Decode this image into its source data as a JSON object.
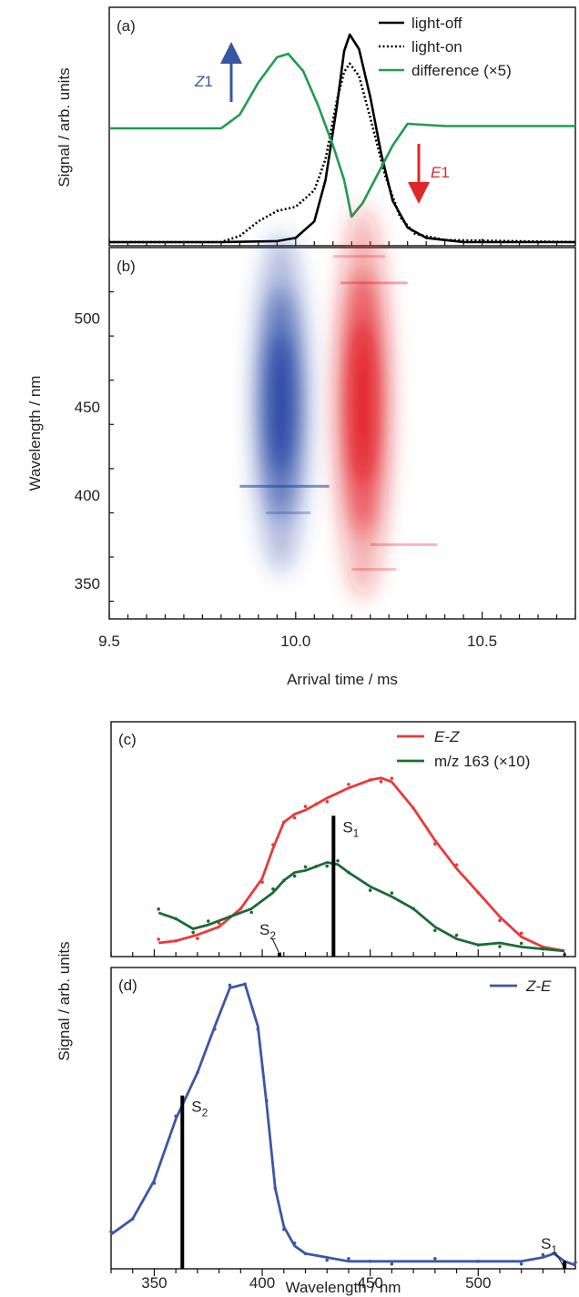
{
  "colors": {
    "light_off": "#000000",
    "light_on": "#000000",
    "difference": "#1f9d4c",
    "z1_arrow": "#3556a3",
    "e1_arrow": "#e0262b",
    "heat_negative": "#1d3fa0",
    "heat_positive": "#e0141d",
    "ez": "#e83a3a",
    "mz163": "#1b6b33",
    "ze": "#3b57a6",
    "stick": "#000000"
  },
  "chart_data": [
    {
      "panel": "a",
      "type": "line",
      "panel_label": "(a)",
      "ylabel": "Signal / arb. units",
      "xlim": [
        9.5,
        10.75
      ],
      "x_axis_shared_with": "b",
      "grid": false,
      "legend_position": "top-right",
      "series": [
        {
          "name": "light-off",
          "style": "solid",
          "x": [
            9.5,
            9.8,
            9.95,
            10.0,
            10.05,
            10.08,
            10.11,
            10.13,
            10.145,
            10.17,
            10.2,
            10.23,
            10.26,
            10.3,
            10.35,
            10.45,
            10.75
          ],
          "y": [
            0,
            0,
            0.005,
            0.02,
            0.1,
            0.3,
            0.65,
            0.92,
            1.0,
            0.93,
            0.7,
            0.42,
            0.2,
            0.07,
            0.02,
            0,
            0
          ]
        },
        {
          "name": "light-on",
          "style": "dotted",
          "x": [
            9.5,
            9.8,
            9.85,
            9.9,
            9.95,
            10.0,
            10.05,
            10.08,
            10.11,
            10.13,
            10.145,
            10.17,
            10.2,
            10.24,
            10.28,
            10.32,
            10.4,
            10.75
          ],
          "y": [
            0,
            0,
            0.03,
            0.1,
            0.15,
            0.17,
            0.25,
            0.4,
            0.68,
            0.82,
            0.86,
            0.8,
            0.6,
            0.32,
            0.12,
            0.04,
            0.01,
            0
          ]
        },
        {
          "name": "difference (×5)",
          "style": "solid",
          "x": [
            9.5,
            9.8,
            9.85,
            9.9,
            9.95,
            9.98,
            10.02,
            10.06,
            10.1,
            10.13,
            10.15,
            10.18,
            10.22,
            10.26,
            10.3,
            10.4,
            10.75
          ],
          "y": [
            0,
            0,
            0.12,
            0.4,
            0.62,
            0.65,
            0.5,
            0.2,
            -0.15,
            -0.45,
            -0.77,
            -0.65,
            -0.4,
            -0.15,
            0.04,
            0.02,
            0.02
          ]
        }
      ],
      "annotations": [
        {
          "text": "Z",
          "suffix": "1",
          "direction": "up"
        },
        {
          "text": "E",
          "suffix": "1",
          "direction": "down"
        }
      ]
    },
    {
      "panel": "b",
      "type": "heatmap",
      "panel_label": "(b)",
      "xlabel": "Arrival time / ms",
      "ylabel": "Wavelength / nm",
      "xlim": [
        9.5,
        10.75
      ],
      "ylim": [
        330,
        540
      ],
      "xticks": [
        9.5,
        10.0,
        10.5
      ],
      "xtick_labels": [
        "9.5",
        "10.0",
        "10.5"
      ],
      "yticks": [
        350,
        400,
        450,
        500
      ],
      "ytick_labels": [
        "350",
        "400",
        "450",
        "500"
      ],
      "blobs": [
        {
          "sign": "negative",
          "x_center": 9.96,
          "x_width": 0.07,
          "y_center": 452,
          "y_width": 52,
          "intensity": -1.0
        },
        {
          "sign": "positive",
          "x_center": 10.18,
          "x_width": 0.07,
          "y_center": 452,
          "y_width": 60,
          "intensity": 1.0
        }
      ]
    },
    {
      "panel": "c",
      "type": "line",
      "panel_label": "(c)",
      "xlim": [
        330,
        545
      ],
      "legend_position": "top-right",
      "series": [
        {
          "name": "E-Z",
          "x": [
            352,
            360,
            370,
            380,
            390,
            400,
            405,
            410,
            415,
            420,
            425,
            430,
            440,
            450,
            455,
            460,
            470,
            480,
            490,
            500,
            510,
            520,
            530,
            540
          ],
          "y": [
            0.05,
            0.06,
            0.09,
            0.13,
            0.22,
            0.37,
            0.52,
            0.65,
            0.69,
            0.71,
            0.74,
            0.77,
            0.82,
            0.86,
            0.87,
            0.85,
            0.72,
            0.56,
            0.42,
            0.3,
            0.18,
            0.08,
            0.03,
            0.01
          ]
        },
        {
          "name": "m/z 163 (×10)",
          "x": [
            352,
            360,
            368,
            375,
            385,
            395,
            405,
            410,
            415,
            420,
            425,
            430,
            435,
            440,
            450,
            460,
            470,
            480,
            490,
            500,
            510,
            520,
            530,
            540
          ],
          "y": [
            0.2,
            0.17,
            0.12,
            0.14,
            0.18,
            0.22,
            0.3,
            0.36,
            0.4,
            0.41,
            0.43,
            0.45,
            0.44,
            0.4,
            0.33,
            0.28,
            0.22,
            0.13,
            0.07,
            0.04,
            0.05,
            0.03,
            0.02,
            0.01
          ]
        }
      ],
      "sticks": [
        {
          "label": "S",
          "sub": "1",
          "x": 433,
          "height": 0.7
        },
        {
          "label": "S",
          "sub": "2",
          "x": 408,
          "height": 0.02
        }
      ]
    },
    {
      "panel": "d",
      "type": "line",
      "panel_label": "(d)",
      "shared_ylabel": "Signal / arb. units",
      "xlabel": "Wavelength / nm",
      "xlim": [
        330,
        545
      ],
      "xticks": [
        350,
        400,
        450,
        500
      ],
      "xtick_labels": [
        "350",
        "400",
        "450",
        "500"
      ],
      "legend_position": "top-right",
      "series": [
        {
          "name": "Z-E",
          "x": [
            330,
            340,
            350,
            360,
            370,
            378,
            385,
            392,
            398,
            402,
            406,
            410,
            415,
            420,
            430,
            440,
            450,
            460,
            480,
            500,
            520,
            530,
            535,
            540,
            545
          ],
          "y": [
            0.08,
            0.12,
            0.22,
            0.38,
            0.5,
            0.62,
            0.72,
            0.73,
            0.62,
            0.42,
            0.2,
            0.1,
            0.05,
            0.03,
            0.02,
            0.01,
            0.01,
            0.01,
            0.01,
            0.01,
            0.01,
            0.02,
            0.03,
            0.01,
            0.0
          ]
        }
      ],
      "sticks": [
        {
          "label": "S",
          "sub": "2",
          "x": 363,
          "height": 0.45
        },
        {
          "label": "S",
          "sub": "1",
          "x": 540,
          "height": 0.02
        }
      ]
    }
  ]
}
